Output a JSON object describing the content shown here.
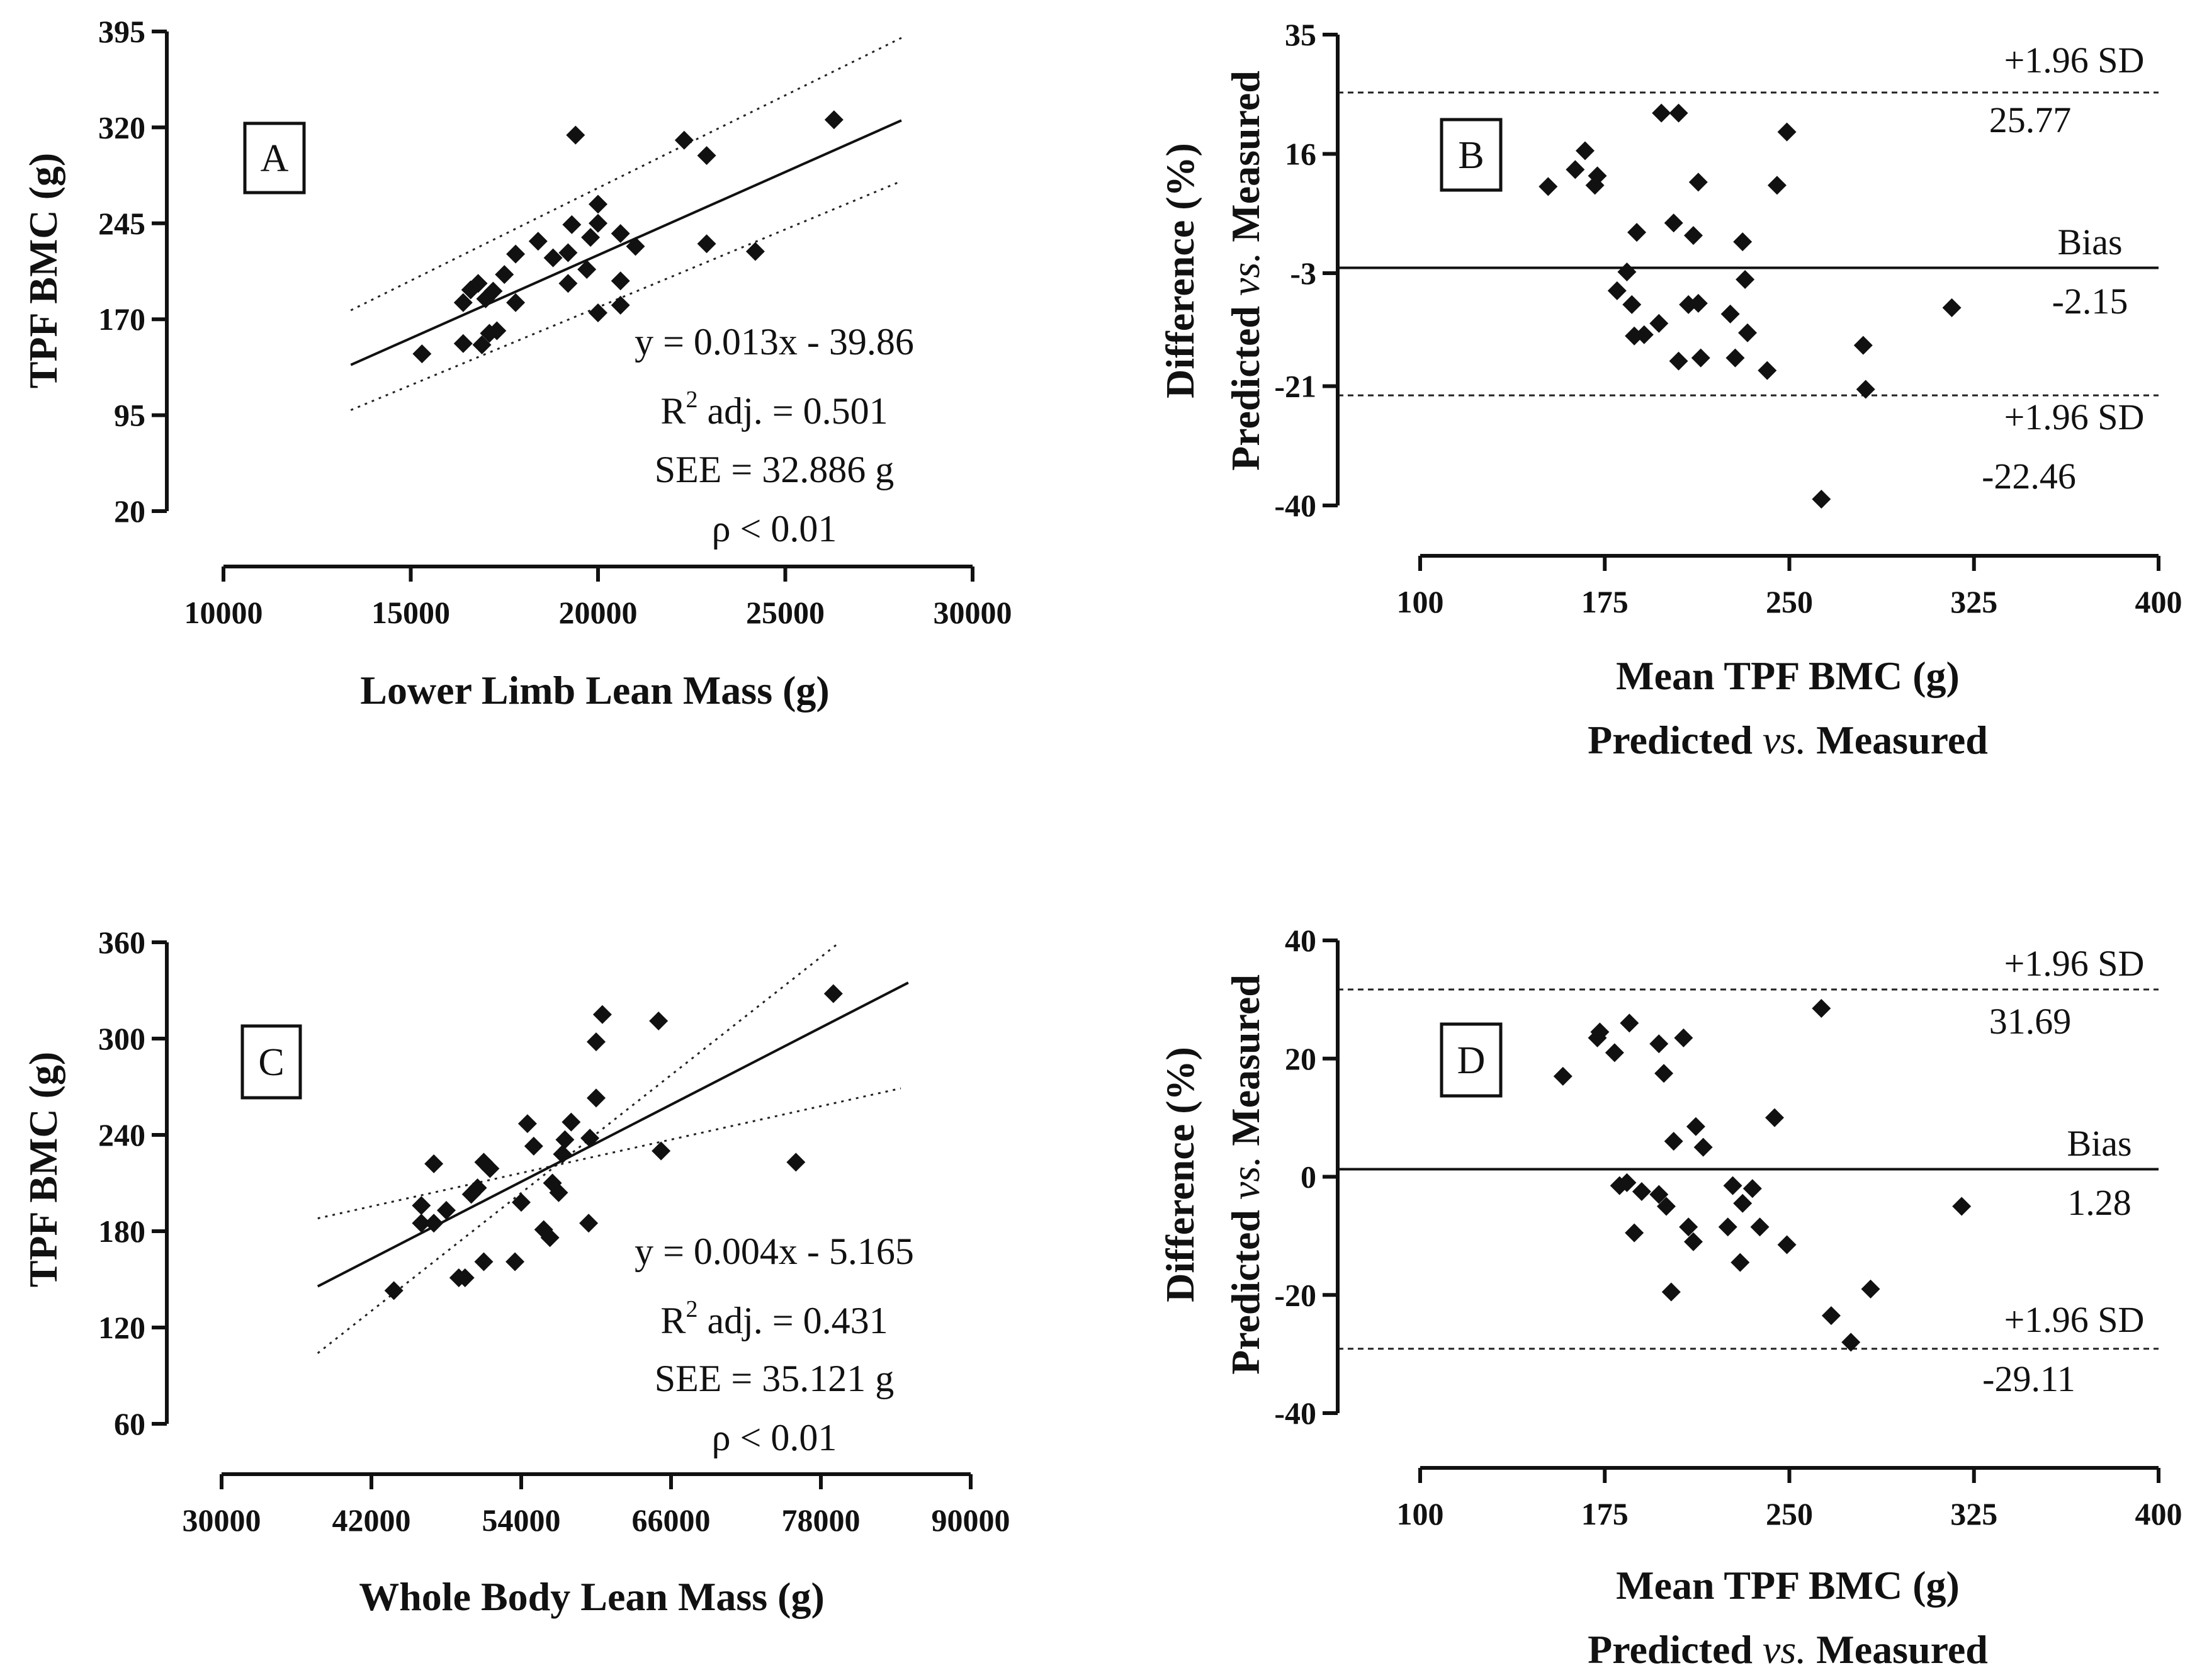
{
  "chart_data": [
    {
      "panel": "A",
      "type": "scatter",
      "xlabel": "Lower Limb Lean Mass (g)",
      "ylabel": "TPF BMC (g)",
      "xlim": [
        10000,
        30000
      ],
      "ylim": [
        20,
        395
      ],
      "xticks": [
        10000,
        15000,
        20000,
        25000,
        30000
      ],
      "yticks": [
        20,
        95,
        170,
        245,
        320,
        395
      ],
      "x_tick_labels": [
        "10000",
        "15000",
        "20000",
        "25000",
        "30000"
      ],
      "y_tick_labels": [
        "20",
        "95",
        "170",
        "245",
        "320",
        "395"
      ],
      "fit": {
        "slope": 0.013,
        "intercept": -39.86,
        "x_range": [
          13400,
          28100
        ]
      },
      "ci_upper": {
        "x": [
          13400,
          28100
        ],
        "y": [
          177,
          390
        ]
      },
      "ci_lower": {
        "x": [
          13400,
          28100
        ],
        "y": [
          99,
          278
        ]
      },
      "annotations": {
        "equation": "y = 0.013x - 39.86",
        "r2_prefix": "R",
        "r2_sup": "2",
        "r2_rest": " adj. = 0.501",
        "see": "SEE = 32.886 g",
        "p": "ρ < 0.01"
      },
      "points": [
        {
          "x": 15300,
          "y": 143
        },
        {
          "x": 16400,
          "y": 151
        },
        {
          "x": 16400,
          "y": 183
        },
        {
          "x": 16600,
          "y": 193
        },
        {
          "x": 16800,
          "y": 198
        },
        {
          "x": 16900,
          "y": 150
        },
        {
          "x": 17000,
          "y": 186
        },
        {
          "x": 17100,
          "y": 159
        },
        {
          "x": 17200,
          "y": 192
        },
        {
          "x": 17300,
          "y": 161
        },
        {
          "x": 17500,
          "y": 205
        },
        {
          "x": 17800,
          "y": 183
        },
        {
          "x": 17800,
          "y": 221
        },
        {
          "x": 18400,
          "y": 231
        },
        {
          "x": 18800,
          "y": 218
        },
        {
          "x": 19200,
          "y": 222
        },
        {
          "x": 19200,
          "y": 198
        },
        {
          "x": 19300,
          "y": 244
        },
        {
          "x": 19400,
          "y": 314
        },
        {
          "x": 19700,
          "y": 209
        },
        {
          "x": 19800,
          "y": 234
        },
        {
          "x": 20000,
          "y": 245
        },
        {
          "x": 20000,
          "y": 260
        },
        {
          "x": 20000,
          "y": 175
        },
        {
          "x": 20600,
          "y": 237
        },
        {
          "x": 20600,
          "y": 200
        },
        {
          "x": 20600,
          "y": 181
        },
        {
          "x": 21000,
          "y": 227
        },
        {
          "x": 22300,
          "y": 310
        },
        {
          "x": 22900,
          "y": 298
        },
        {
          "x": 22900,
          "y": 229
        },
        {
          "x": 24200,
          "y": 223
        },
        {
          "x": 26300,
          "y": 326
        }
      ]
    },
    {
      "panel": "B",
      "type": "scatter",
      "xlabel": "Mean TPF BMC (g)",
      "xlabel2_pre": "Predicted ",
      "xlabel2_it": "vs.",
      "xlabel2_post": " Measured",
      "ylabel_top": "Difference (%)",
      "ylabel_pre": "Predicted ",
      "ylabel_it": "vs.",
      "ylabel_post": " Measured",
      "xlim": [
        100,
        400
      ],
      "ylim": [
        -40,
        35
      ],
      "xticks": [
        100,
        175,
        250,
        325,
        400
      ],
      "yticks": [
        -40,
        -21,
        -3,
        16,
        35
      ],
      "x_tick_labels": [
        "100",
        "175",
        "250",
        "325",
        "400"
      ],
      "y_tick_labels": [
        "-40",
        "-21",
        "-3",
        "16",
        "35"
      ],
      "bias": -2.15,
      "upper_loa": 25.77,
      "lower_loa": -22.46,
      "labels": {
        "upper_sd": "+1.96 SD",
        "upper_value": "25.77",
        "bias": "Bias",
        "bias_value": "-2.15",
        "lower_sd": "+1.96 SD",
        "lower_value": "-22.46"
      },
      "points": [
        {
          "x": 152,
          "y": 10.8
        },
        {
          "x": 163,
          "y": 13.5
        },
        {
          "x": 167,
          "y": 16.5
        },
        {
          "x": 171,
          "y": 11
        },
        {
          "x": 172,
          "y": 12.5
        },
        {
          "x": 180,
          "y": -5.8
        },
        {
          "x": 184,
          "y": -2.8
        },
        {
          "x": 186,
          "y": -8
        },
        {
          "x": 187,
          "y": -13
        },
        {
          "x": 188,
          "y": 3.5
        },
        {
          "x": 191,
          "y": -12.8
        },
        {
          "x": 197,
          "y": -11
        },
        {
          "x": 198,
          "y": 22.5
        },
        {
          "x": 203,
          "y": 5
        },
        {
          "x": 205,
          "y": 22.5
        },
        {
          "x": 205,
          "y": -17
        },
        {
          "x": 209,
          "y": -8
        },
        {
          "x": 211,
          "y": 3
        },
        {
          "x": 213,
          "y": 11.5
        },
        {
          "x": 213,
          "y": -7.8
        },
        {
          "x": 214,
          "y": -16.5
        },
        {
          "x": 226,
          "y": -9.5
        },
        {
          "x": 228,
          "y": -16.5
        },
        {
          "x": 231,
          "y": 2
        },
        {
          "x": 232,
          "y": -4
        },
        {
          "x": 233,
          "y": -12.5
        },
        {
          "x": 241,
          "y": -18.5
        },
        {
          "x": 245,
          "y": 11
        },
        {
          "x": 249,
          "y": 19.5
        },
        {
          "x": 263,
          "y": -39
        },
        {
          "x": 280,
          "y": -14.5
        },
        {
          "x": 281,
          "y": -21.5
        },
        {
          "x": 316,
          "y": -8.5
        }
      ]
    },
    {
      "panel": "C",
      "type": "scatter",
      "xlabel": "Whole Body Lean Mass (g)",
      "ylabel": "TPF BMC (g)",
      "xlim": [
        30000,
        90000
      ],
      "ylim": [
        60,
        360
      ],
      "xticks": [
        30000,
        42000,
        54000,
        66000,
        78000,
        90000
      ],
      "yticks": [
        60,
        120,
        180,
        240,
        300,
        360
      ],
      "x_tick_labels": [
        "30000",
        "42000",
        "54000",
        "66000",
        "78000",
        "90000"
      ],
      "y_tick_labels": [
        "60",
        "120",
        "180",
        "240",
        "300",
        "360"
      ],
      "fit": {
        "slope": 0.004,
        "intercept": -5.165,
        "x_range": [
          37700,
          85000
        ]
      },
      "ci_upper": {
        "x": [
          37700,
          84400
        ],
        "y": [
          188,
          269
        ]
      },
      "ci_lower": {
        "x": [
          37700,
          79500
        ],
        "y": [
          104,
          360
        ]
      },
      "annotations": {
        "equation": "y = 0.004x - 5.165",
        "r2_prefix": "R",
        "r2_sup": "2",
        "r2_rest": " adj. = 0.431",
        "see": "SEE = 35.121 g",
        "p": "ρ < 0.01"
      },
      "points": [
        {
          "x": 43800,
          "y": 143
        },
        {
          "x": 46000,
          "y": 196
        },
        {
          "x": 46000,
          "y": 185
        },
        {
          "x": 47000,
          "y": 222
        },
        {
          "x": 47000,
          "y": 185
        },
        {
          "x": 48000,
          "y": 193
        },
        {
          "x": 49000,
          "y": 151
        },
        {
          "x": 49500,
          "y": 151
        },
        {
          "x": 50000,
          "y": 203
        },
        {
          "x": 50500,
          "y": 207
        },
        {
          "x": 51000,
          "y": 161
        },
        {
          "x": 51000,
          "y": 223
        },
        {
          "x": 51500,
          "y": 219
        },
        {
          "x": 53500,
          "y": 161
        },
        {
          "x": 54000,
          "y": 198
        },
        {
          "x": 54500,
          "y": 247
        },
        {
          "x": 55000,
          "y": 233
        },
        {
          "x": 55800,
          "y": 181
        },
        {
          "x": 56300,
          "y": 176
        },
        {
          "x": 56500,
          "y": 210
        },
        {
          "x": 57000,
          "y": 204
        },
        {
          "x": 57300,
          "y": 228
        },
        {
          "x": 57500,
          "y": 237
        },
        {
          "x": 58000,
          "y": 248
        },
        {
          "x": 59400,
          "y": 185
        },
        {
          "x": 59500,
          "y": 238
        },
        {
          "x": 60000,
          "y": 298
        },
        {
          "x": 60000,
          "y": 263
        },
        {
          "x": 60500,
          "y": 315
        },
        {
          "x": 65000,
          "y": 311
        },
        {
          "x": 65200,
          "y": 230
        },
        {
          "x": 76000,
          "y": 223
        },
        {
          "x": 79000,
          "y": 328
        }
      ]
    },
    {
      "panel": "D",
      "type": "scatter",
      "xlabel": "Mean TPF BMC (g)",
      "xlabel2_pre": "Predicted ",
      "xlabel2_it": "vs.",
      "xlabel2_post": " Measured",
      "ylabel_top": "Difference (%)",
      "ylabel_pre": "Predicted ",
      "ylabel_it": "vs.",
      "ylabel_post": " Measured",
      "xlim": [
        100,
        400
      ],
      "ylim": [
        -40,
        40
      ],
      "xticks": [
        100,
        175,
        250,
        325,
        400
      ],
      "yticks": [
        -40,
        -20,
        0,
        20,
        40
      ],
      "x_tick_labels": [
        "100",
        "175",
        "250",
        "325",
        "400"
      ],
      "y_tick_labels": [
        "-40",
        "-20",
        "0",
        "20",
        "40"
      ],
      "bias": 1.28,
      "upper_loa": 31.69,
      "lower_loa": -29.11,
      "labels": {
        "upper_sd": "+1.96 SD",
        "upper_value": "31.69",
        "bias": "Bias",
        "bias_value": "1.28",
        "lower_sd": "+1.96 SD",
        "lower_value": "-29.11"
      },
      "points": [
        {
          "x": 158,
          "y": 17
        },
        {
          "x": 172,
          "y": 23.5
        },
        {
          "x": 173,
          "y": 24.5
        },
        {
          "x": 179,
          "y": 21
        },
        {
          "x": 181,
          "y": -1.5
        },
        {
          "x": 184,
          "y": -1
        },
        {
          "x": 185,
          "y": 26
        },
        {
          "x": 187,
          "y": -9.5
        },
        {
          "x": 190,
          "y": -2.5
        },
        {
          "x": 197,
          "y": 22.5
        },
        {
          "x": 197,
          "y": -3
        },
        {
          "x": 199,
          "y": 17.5
        },
        {
          "x": 200,
          "y": -5
        },
        {
          "x": 202,
          "y": -19.5
        },
        {
          "x": 203,
          "y": 6
        },
        {
          "x": 207,
          "y": 23.5
        },
        {
          "x": 209,
          "y": -8.5
        },
        {
          "x": 211,
          "y": -11
        },
        {
          "x": 212,
          "y": 8.5
        },
        {
          "x": 215,
          "y": 5
        },
        {
          "x": 225,
          "y": -8.5
        },
        {
          "x": 227,
          "y": -1.5
        },
        {
          "x": 230,
          "y": -14.5
        },
        {
          "x": 231,
          "y": -4.5
        },
        {
          "x": 235,
          "y": -2
        },
        {
          "x": 238,
          "y": -8.5
        },
        {
          "x": 244,
          "y": 10
        },
        {
          "x": 249,
          "y": -11.5
        },
        {
          "x": 263,
          "y": 28.5
        },
        {
          "x": 267,
          "y": -23.5
        },
        {
          "x": 275,
          "y": -28
        },
        {
          "x": 283,
          "y": -19
        },
        {
          "x": 320,
          "y": -5
        }
      ]
    }
  ]
}
